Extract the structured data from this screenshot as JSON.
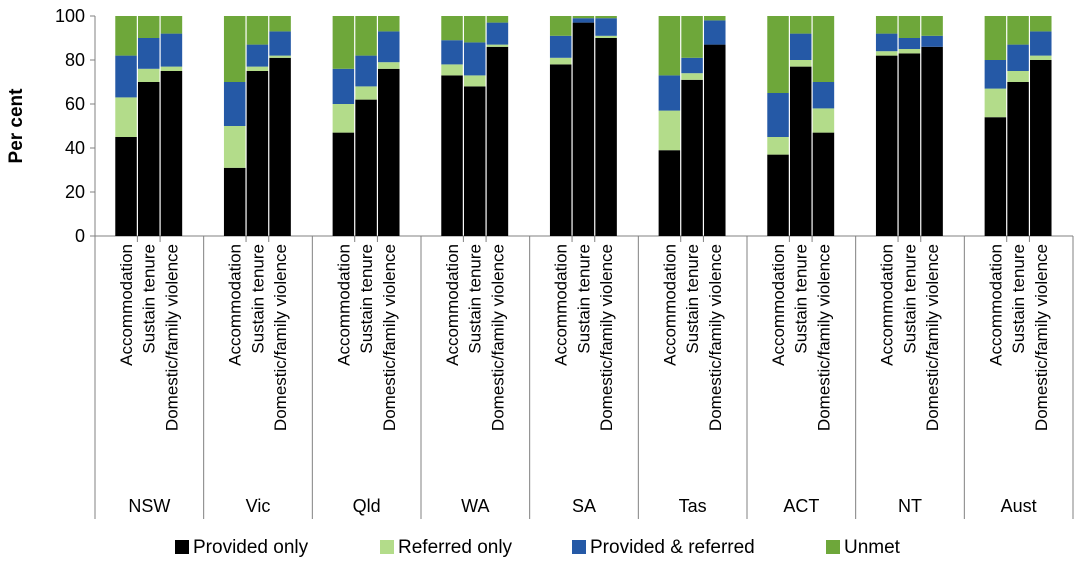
{
  "chart_data": {
    "type": "bar",
    "stacked": true,
    "ylabel": "Per cent",
    "xlabel": "",
    "ylim": [
      0,
      100
    ],
    "yticks": [
      0,
      20,
      40,
      60,
      80,
      100
    ],
    "groups": [
      "NSW",
      "Vic",
      "Qld",
      "WA",
      "SA",
      "Tas",
      "ACT",
      "NT",
      "Aust"
    ],
    "subcategories": [
      "Accommodation",
      "Sustain tenure",
      "Domestic/family violence"
    ],
    "legend_position": "bottom",
    "series": [
      {
        "name": "Provided only",
        "color": "#000000",
        "values": [
          45,
          70,
          75,
          31,
          75,
          81,
          47,
          62,
          76,
          73,
          68,
          86,
          78,
          97,
          90,
          39,
          71,
          87,
          37,
          77,
          47,
          82,
          83,
          86,
          54,
          70,
          80
        ]
      },
      {
        "name": "Referred only",
        "color": "#b3dc8a",
        "values": [
          18,
          6,
          2,
          19,
          2,
          1,
          13,
          6,
          3,
          5,
          5,
          1,
          3,
          0,
          1,
          18,
          3,
          0,
          8,
          3,
          11,
          2,
          2,
          0,
          13,
          5,
          2
        ]
      },
      {
        "name": "Provided & referred",
        "color": "#2559a6",
        "values": [
          19,
          14,
          15,
          20,
          10,
          11,
          16,
          14,
          14,
          11,
          15,
          10,
          10,
          2,
          8,
          16,
          7,
          11,
          20,
          12,
          12,
          8,
          5,
          5,
          13,
          12,
          11
        ]
      },
      {
        "name": "Unmet",
        "color": "#6ea73a",
        "values": [
          18,
          10,
          8,
          30,
          13,
          7,
          24,
          18,
          7,
          11,
          12,
          3,
          9,
          1,
          1,
          27,
          19,
          2,
          35,
          8,
          30,
          8,
          10,
          9,
          20,
          13,
          7
        ]
      }
    ]
  }
}
